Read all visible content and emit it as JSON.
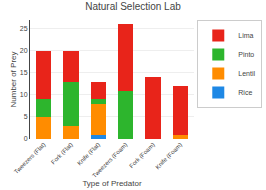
{
  "chart_data": {
    "type": "bar",
    "title": "Natural Selection Lab",
    "xlabel": "Type of Predator",
    "ylabel": "Number of Prey",
    "categories": [
      "Tweezers (Flat)",
      "Fork (Flat)",
      "Knife (Flat)",
      "Tweezers (Foam)",
      "Fork (Foam)",
      "Knife (Foam)"
    ],
    "series": [
      {
        "name": "Rice",
        "color": "#1e88e5",
        "values": [
          0,
          0,
          1,
          0,
          0,
          0
        ]
      },
      {
        "name": "Lentil",
        "color": "#ff8c00",
        "values": [
          5,
          3,
          7,
          0,
          0,
          1
        ]
      },
      {
        "name": "Pinto",
        "color": "#2db52d",
        "values": [
          4,
          10,
          1,
          11,
          0,
          0
        ]
      },
      {
        "name": "Lima",
        "color": "#e8241a",
        "values": [
          11,
          7,
          4,
          15,
          14,
          11
        ]
      }
    ],
    "stacked": true,
    "ylim": [
      0,
      27
    ],
    "yticks": [
      0,
      5,
      10,
      15,
      20,
      25
    ],
    "grid": true,
    "legend": "upper right"
  }
}
